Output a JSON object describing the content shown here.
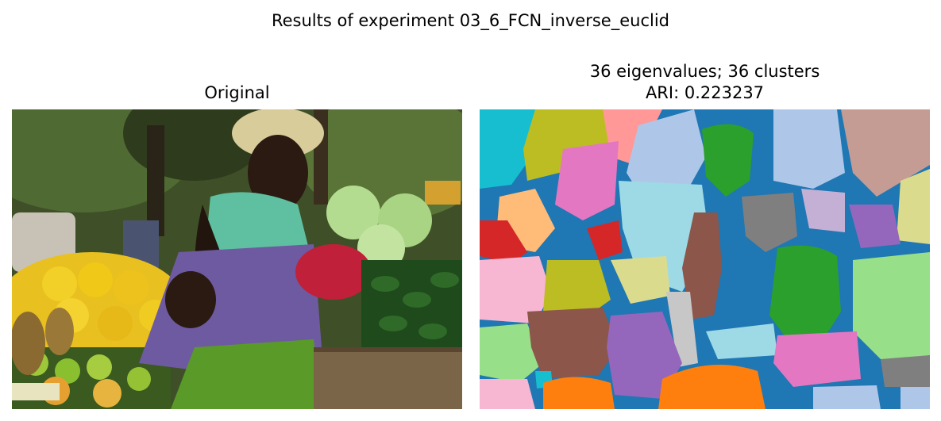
{
  "figure": {
    "suptitle": "Results of experiment 03_6_FCN_inverse_euclid"
  },
  "left_panel": {
    "title": "Original"
  },
  "right_panel": {
    "title_line1": "36 eigenvalues; 36 clusters",
    "title_line2": "ARI: 0.223237"
  },
  "colors": {
    "seg_background": "#1f77b4",
    "tab_palette": [
      "#1f77b4",
      "#ff7f0e",
      "#2ca02c",
      "#d62728",
      "#9467bd",
      "#8c564b",
      "#e377c2",
      "#7f7f7f",
      "#bcbd22",
      "#17becf",
      "#aec7e8",
      "#ffbb78",
      "#98df8a",
      "#ff9896",
      "#c5b0d5",
      "#c49c94",
      "#f7b6d2",
      "#c7c7c7",
      "#dbdb8d",
      "#9edae5"
    ]
  }
}
